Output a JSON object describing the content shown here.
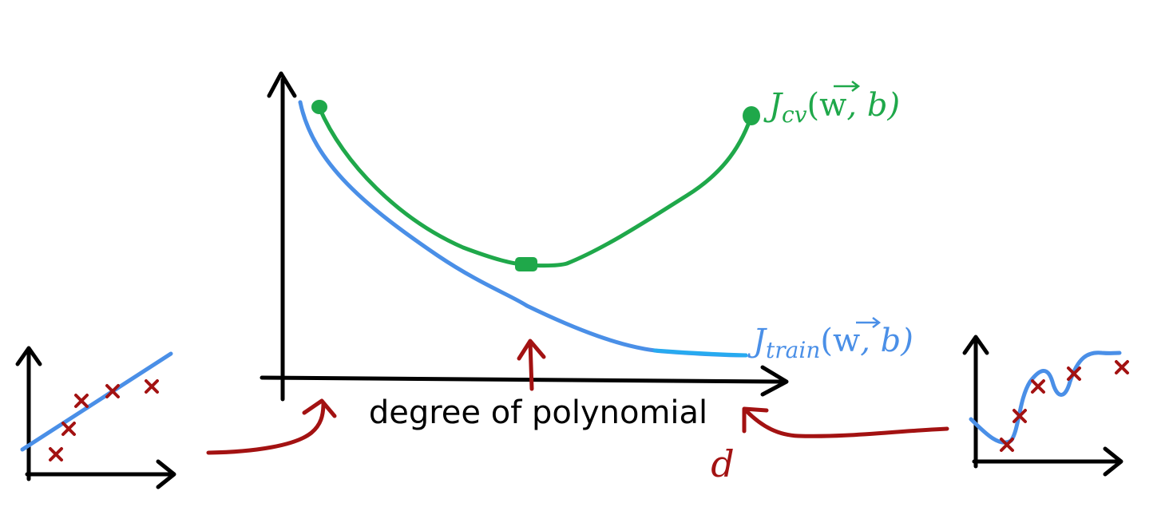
{
  "labels": {
    "x_axis": "degree of polynomial",
    "variable": "d",
    "cv_curve": {
      "J": "J",
      "subscript": "cv",
      "args": "(w, b)",
      "args_prefix": "(",
      "w": "w",
      "args_suffix": ", b)"
    },
    "train_curve": {
      "J": "J",
      "subscript": "train",
      "args": "(w, b)",
      "args_prefix": "(",
      "w": "w",
      "args_suffix": ", b)"
    }
  },
  "colors": {
    "axis": "#000000",
    "cv": "#1fa84a",
    "train": "#4a8fe7",
    "train_tail": "#27aaf0",
    "annotation": "#a31212",
    "data_points": "#a31212"
  },
  "icons": {
    "arrow_style": "hand-drawn",
    "data_marker": "x-mark"
  }
}
